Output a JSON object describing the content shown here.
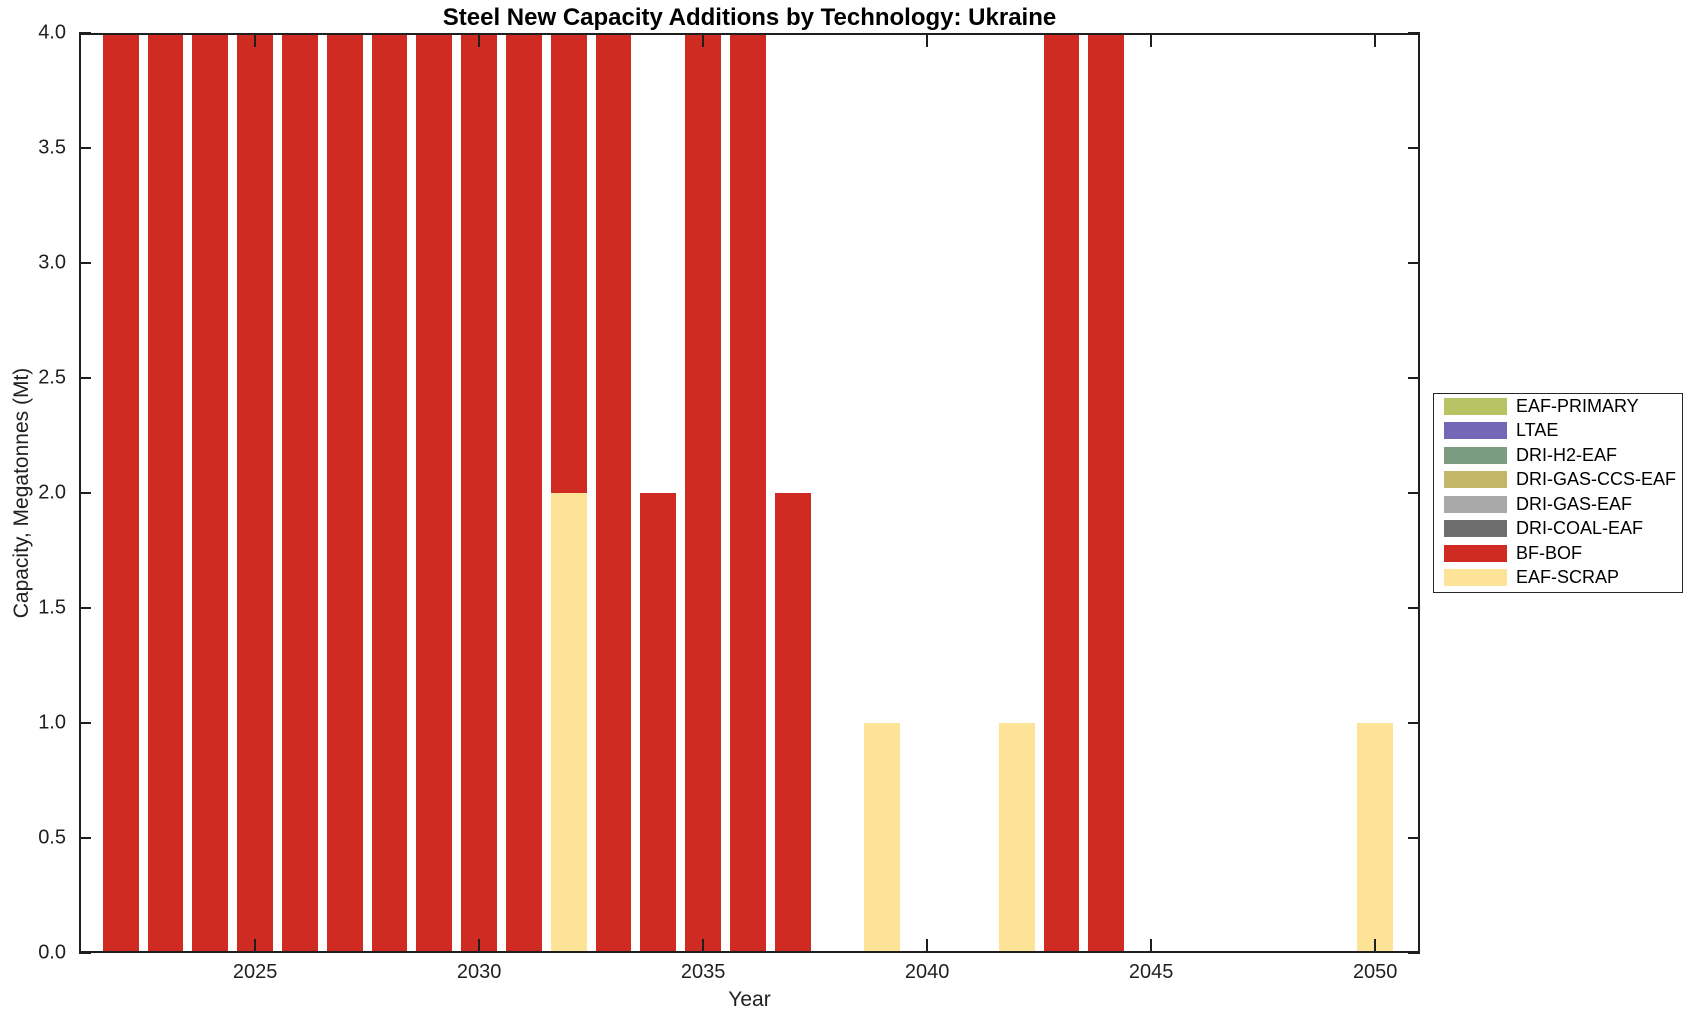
{
  "chart_data": {
    "type": "bar",
    "stacked": true,
    "title": "Steel New Capacity Additions by Technology: Ukraine",
    "xlabel": "Year",
    "ylabel": "Capacity, Megatonnes (Mt)",
    "xlim": [
      2021.07,
      2051.0
    ],
    "ylim": [
      0,
      4
    ],
    "bar_width_years": 0.8,
    "grid": false,
    "xticks": [
      2025,
      2030,
      2035,
      2040,
      2045,
      2050
    ],
    "ytick_labels": [
      "0.0",
      "0.5",
      "1.0",
      "1.5",
      "2.0",
      "2.5",
      "3.0",
      "3.5",
      "4.0"
    ],
    "categories": [
      2022,
      2023,
      2024,
      2025,
      2026,
      2027,
      2028,
      2029,
      2030,
      2031,
      2032,
      2033,
      2034,
      2035,
      2036,
      2037,
      2038,
      2039,
      2040,
      2041,
      2042,
      2043,
      2044,
      2045,
      2046,
      2047,
      2048,
      2049,
      2050
    ],
    "series": [
      {
        "name": "EAF-SCRAP",
        "color": "#fde398",
        "stack_position": "bottom",
        "values": [
          0,
          0,
          0,
          0,
          0,
          0,
          0,
          0,
          0,
          0,
          2,
          0,
          0,
          0,
          0,
          0,
          0,
          1,
          0,
          0,
          1,
          0,
          0,
          0,
          0,
          0,
          0,
          0,
          1
        ]
      },
      {
        "name": "BF-BOF",
        "color": "#d02b23",
        "stack_position": "top",
        "values": [
          4,
          4,
          4,
          4,
          4,
          4,
          4,
          4,
          4,
          4,
          2,
          4,
          2,
          4,
          4,
          2,
          0,
          0,
          0,
          0,
          0,
          4,
          4,
          0,
          0,
          0,
          0,
          0,
          0
        ]
      }
    ],
    "legend": {
      "position": "right-outside",
      "items": [
        {
          "label": "EAF-PRIMARY",
          "color": "#b8c463"
        },
        {
          "label": "LTAE",
          "color": "#7468b6"
        },
        {
          "label": "DRI-H2-EAF",
          "color": "#7b9c80"
        },
        {
          "label": "DRI-GAS-CCS-EAF",
          "color": "#c3b767"
        },
        {
          "label": "DRI-GAS-EAF",
          "color": "#a8a8a8"
        },
        {
          "label": "DRI-COAL-EAF",
          "color": "#6e6e6e"
        },
        {
          "label": "BF-BOF",
          "color": "#d02b23"
        },
        {
          "label": "EAF-SCRAP",
          "color": "#fde398"
        }
      ]
    }
  }
}
